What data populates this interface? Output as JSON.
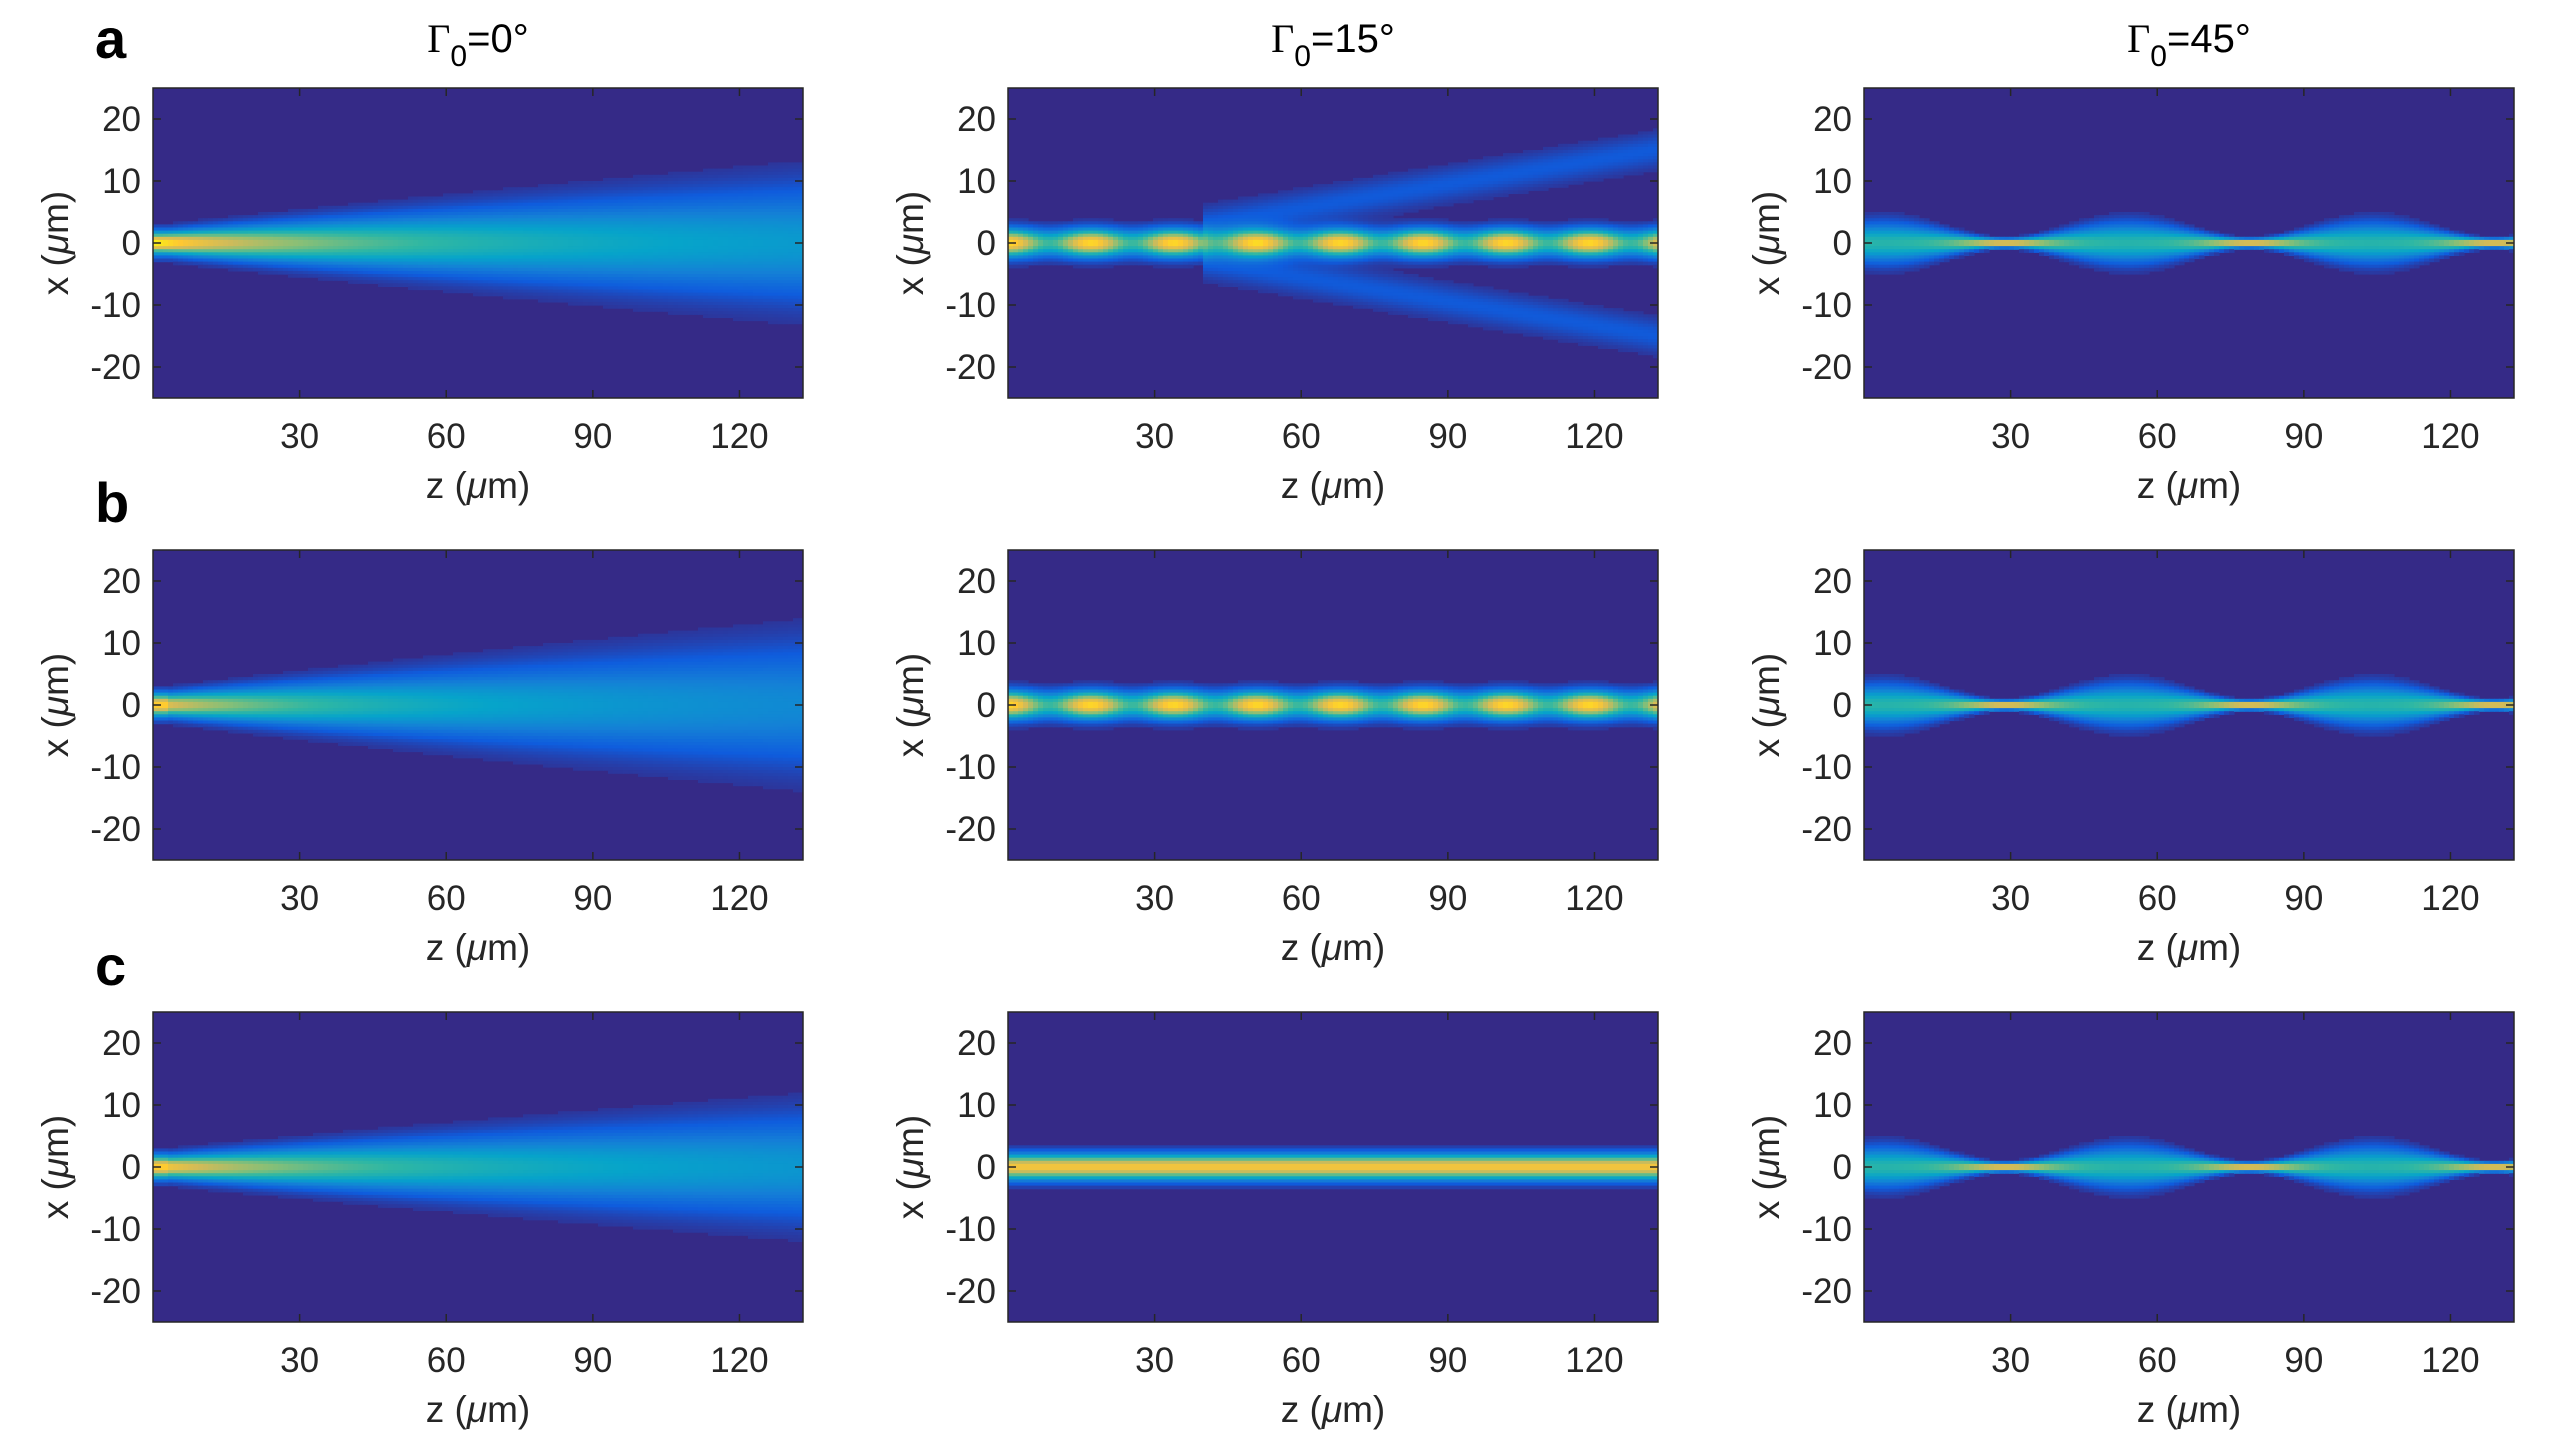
{
  "rows": [
    {
      "letter": "a"
    },
    {
      "letter": "b"
    },
    {
      "letter": "c"
    }
  ],
  "columns": [
    {
      "symbol": "Γ",
      "subscript": "0",
      "value": "=0°",
      "pattern": "diverging"
    },
    {
      "symbol": "Γ",
      "subscript": "0",
      "value": "=15°",
      "pattern": "oscillating"
    },
    {
      "symbol": "Γ",
      "subscript": "0",
      "value": "=45°",
      "pattern": "breathing"
    }
  ],
  "axes": {
    "xlabel_pre": "z (",
    "xlabel_mu": "μ",
    "xlabel_post": "m)",
    "ylabel_pre": "x (",
    "ylabel_mu": "μ",
    "ylabel_post": "m)"
  },
  "colors": {
    "background": "#352A87",
    "colormap": [
      "#352A87",
      "#0F5CDD",
      "#1481D6",
      "#06A4CA",
      "#2EB7A4",
      "#87BF77",
      "#D1BB59",
      "#FEC832",
      "#F9FB0E"
    ]
  },
  "chart_data": {
    "type": "heatmap",
    "description_panels": "3 rows (a, b, c) x 3 columns of intensity maps",
    "x_axis": {
      "label": "z (μm)",
      "range": [
        0,
        133
      ],
      "ticks": [
        30,
        60,
        90,
        120
      ]
    },
    "y_axis": {
      "label": "x (μm)",
      "range": [
        -25,
        25
      ],
      "ticks": [
        20,
        10,
        0,
        -10,
        -20
      ]
    },
    "panels": [
      {
        "row": "a",
        "column": "Γ0=0°",
        "pattern": "diverging",
        "beam_halfwidth_start": 2,
        "beam_halfwidth_end": 11,
        "peak_intensity_at_start": 0.95,
        "side_lobes": false
      },
      {
        "row": "a",
        "column": "Γ0=15°",
        "pattern": "oscillating",
        "beam_halfwidth": 2,
        "period": 17,
        "side_lobes": true,
        "side_lobe_offset_at_end": 15
      },
      {
        "row": "a",
        "column": "Γ0=45°",
        "pattern": "breathing",
        "beam_halfwidth_min": 0.6,
        "beam_halfwidth_max": 3,
        "period": 50
      },
      {
        "row": "b",
        "column": "Γ0=0°",
        "pattern": "diverging",
        "beam_halfwidth_start": 2,
        "beam_halfwidth_end": 12,
        "peak_intensity_at_start": 0.8,
        "side_lobes": false
      },
      {
        "row": "b",
        "column": "Γ0=15°",
        "pattern": "oscillating",
        "beam_halfwidth": 2,
        "period": 17,
        "side_lobes": false
      },
      {
        "row": "b",
        "column": "Γ0=45°",
        "pattern": "breathing",
        "beam_halfwidth_min": 0.6,
        "beam_halfwidth_max": 3,
        "period": 50
      },
      {
        "row": "c",
        "column": "Γ0=0°",
        "pattern": "diverging",
        "beam_halfwidth_start": 2,
        "beam_halfwidth_end": 10,
        "peak_intensity_at_start": 0.85,
        "side_lobes": false
      },
      {
        "row": "c",
        "column": "Γ0=15°",
        "pattern": "uniform",
        "beam_halfwidth": 1.8,
        "side_lobes": false
      },
      {
        "row": "c",
        "column": "Γ0=45°",
        "pattern": "breathing",
        "beam_halfwidth_min": 0.6,
        "beam_halfwidth_max": 3,
        "period": 50
      }
    ]
  }
}
